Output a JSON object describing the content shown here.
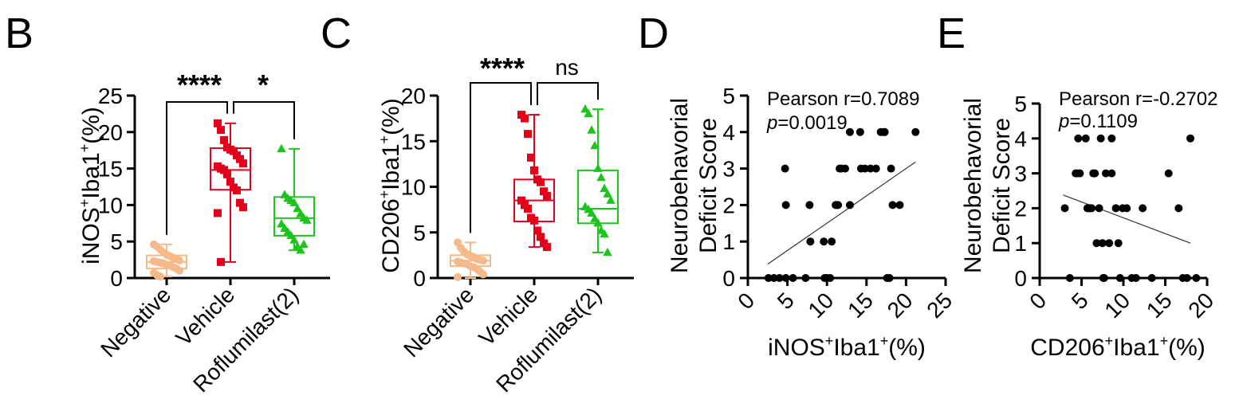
{
  "chart_data": [
    {
      "type": "box",
      "panel_label": "B",
      "ylabel_main": "iNOS",
      "ylabel_sup1": "+",
      "ylabel_mid": "Iba1",
      "ylabel_sup2": "+",
      "ylabel_tail": "(%)",
      "ylim": [
        0,
        25
      ],
      "yticks": [
        "0",
        "5",
        "10",
        "15",
        "20",
        "25"
      ],
      "categories": [
        "Negative",
        "Vehicle",
        "Roflumilast(2)"
      ],
      "colors": [
        "#f5b98a",
        "#e3001b",
        "#1ec41e"
      ],
      "markers": [
        "circle",
        "square",
        "triangle"
      ],
      "boxes": [
        {
          "min": 0.2,
          "q1": 1.3,
          "median": 2.2,
          "q3": 3.1,
          "max": 4.6
        },
        {
          "min": 2.2,
          "q1": 12.1,
          "median": 14.8,
          "q3": 17.8,
          "max": 21.2
        },
        {
          "min": 3.8,
          "q1": 5.8,
          "median": 8.2,
          "q3": 11.1,
          "max": 17.7
        }
      ],
      "points": [
        [
          4.6,
          4.3,
          3.9,
          3.5,
          3.2,
          3.0,
          2.8,
          2.6,
          2.4,
          2.3,
          2.2,
          2.1,
          2.0,
          1.8,
          1.7,
          1.5,
          1.3,
          1.0,
          0.7,
          0.4,
          0.2
        ],
        [
          21.2,
          20.3,
          18.9,
          17.9,
          17.6,
          17.4,
          16.8,
          16.3,
          15.7,
          15.3,
          15.0,
          14.8,
          14.2,
          13.2,
          12.4,
          12.0,
          10.3,
          9.7,
          8.9,
          2.2
        ],
        [
          17.7,
          11.4,
          10.9,
          10.6,
          10.3,
          9.5,
          8.8,
          8.2,
          7.9,
          7.4,
          6.8,
          6.3,
          5.8,
          5.2,
          4.3,
          3.8,
          4.6
        ]
      ],
      "significance": [
        {
          "from": 0,
          "to": 1,
          "label": "****"
        },
        {
          "from": 1,
          "to": 2,
          "label": "*"
        }
      ]
    },
    {
      "type": "box",
      "panel_label": "C",
      "ylabel_main": "CD206",
      "ylabel_sup1": "+",
      "ylabel_mid": "Iba1",
      "ylabel_sup2": "+",
      "ylabel_tail": "(%)",
      "ylim": [
        0,
        20
      ],
      "yticks": [
        "0",
        "5",
        "10",
        "15",
        "20"
      ],
      "categories": [
        "Negative",
        "Vehicle",
        "Roflumilast(2)"
      ],
      "colors": [
        "#f5b98a",
        "#e3001b",
        "#1ec41e"
      ],
      "markers": [
        "circle",
        "square",
        "triangle"
      ],
      "boxes": [
        {
          "min": 0.0,
          "q1": 1.3,
          "median": 1.9,
          "q3": 2.5,
          "max": 3.9
        },
        {
          "min": 3.4,
          "q1": 6.2,
          "median": 8.5,
          "q3": 10.8,
          "max": 17.9
        },
        {
          "min": 2.8,
          "q1": 6.0,
          "median": 7.6,
          "q3": 11.8,
          "max": 18.5
        }
      ],
      "points": [
        [
          3.9,
          3.3,
          2.9,
          2.6,
          2.4,
          2.3,
          2.1,
          2.0,
          1.9,
          1.8,
          1.7,
          1.6,
          1.5,
          1.3,
          1.2,
          1.0,
          0.7,
          0.4,
          0.1
        ],
        [
          17.9,
          17.5,
          15.8,
          13.2,
          11.8,
          10.8,
          10.5,
          9.5,
          9.0,
          8.5,
          8.0,
          7.6,
          6.6,
          6.3,
          5.2,
          4.5,
          3.8,
          3.4
        ],
        [
          18.5,
          18.0,
          16.2,
          14.5,
          12.0,
          11.0,
          9.8,
          9.2,
          8.5,
          7.8,
          7.5,
          7.1,
          6.5,
          6.0,
          5.2,
          4.8,
          2.8
        ]
      ],
      "significance": [
        {
          "from": 0,
          "to": 1,
          "label": "****"
        },
        {
          "from": 1,
          "to": 2,
          "label": "ns"
        }
      ]
    },
    {
      "type": "scatter",
      "panel_label": "D",
      "ylabel_line1": "Neurobehavorial",
      "ylabel_line2": "Deficit Score",
      "xlabel_main": "iNOS",
      "xlabel_sup1": "+",
      "xlabel_mid": "Iba1",
      "xlabel_sup2": "+",
      "xlabel_tail": "(%)",
      "xlim": [
        0,
        25
      ],
      "ylim": [
        0,
        5
      ],
      "xticks": [
        "0",
        "5",
        "10",
        "15",
        "20",
        "25"
      ],
      "yticks": [
        "0",
        "1",
        "2",
        "3",
        "4",
        "5"
      ],
      "stat_r": "Pearson r=0.7089",
      "stat_p_label": "p",
      "stat_p_value": "=0.0019",
      "fit": {
        "x1": 2.5,
        "y1": 0.38,
        "x2": 21.2,
        "y2": 3.18
      },
      "x": [
        2.6,
        3.3,
        4.0,
        4.8,
        5.7,
        7.3,
        9.7,
        10.0,
        10.4,
        4.7,
        4.8,
        7.9,
        7.8,
        9.6,
        10.6,
        11.4,
        11.1,
        11.3,
        11.8,
        11.6,
        12.3,
        12.9,
        14.3,
        14.8,
        15.5,
        16.2,
        16.8,
        18.1,
        17.2,
        17.3,
        17.6,
        17.9,
        18.3,
        19.2,
        21.2,
        12.9,
        14.2
      ],
      "y": [
        0,
        0,
        0,
        0,
        0,
        0,
        0,
        0,
        0,
        3,
        2,
        1,
        2,
        1,
        1,
        2,
        2,
        2,
        3,
        3,
        3,
        4,
        3,
        3,
        3,
        3,
        4,
        3,
        4,
        4,
        0,
        0,
        2,
        2,
        4,
        2,
        4
      ]
    },
    {
      "type": "scatter",
      "panel_label": "E",
      "ylabel_line1": "Neurobehavorial",
      "ylabel_line2": "Deficit Score",
      "xlabel_main": "CD206",
      "xlabel_sup1": "+",
      "xlabel_mid": "Iba1",
      "xlabel_sup2": "+",
      "xlabel_tail": "(%)",
      "xlim": [
        0,
        20
      ],
      "ylim": [
        0,
        5
      ],
      "xticks": [
        "0",
        "5",
        "10",
        "15",
        "20"
      ],
      "yticks": [
        "0",
        "1",
        "2",
        "3",
        "4",
        "5"
      ],
      "stat_r": "Pearson r=-0.2702",
      "stat_p_label": "p",
      "stat_p_value": "=0.1109",
      "fit": {
        "x1": 2.8,
        "y1": 2.38,
        "x2": 18.0,
        "y2": 1.0
      },
      "x": [
        3.0,
        3.6,
        4.3,
        4.6,
        4.5,
        4.8,
        5.5,
        5.7,
        5.9,
        6.0,
        6.2,
        6.4,
        6.8,
        7.1,
        6.6,
        7.3,
        7.5,
        7.7,
        7.6,
        7.9,
        8.3,
        8.6,
        8.6,
        9.1,
        9.4,
        9.6,
        9.9,
        10.4,
        11.0,
        12.3,
        13.4,
        15.4,
        16.6,
        17.1,
        17.6,
        18.0,
        18.7,
        11.5
      ],
      "y": [
        2,
        0,
        3,
        4,
        3,
        3,
        4,
        2,
        2,
        2,
        2,
        3,
        1,
        2,
        3,
        4,
        1,
        0,
        0,
        3,
        1,
        3,
        4,
        2,
        1,
        0,
        2,
        2,
        0,
        2,
        0,
        3,
        2,
        0,
        0,
        4,
        0,
        0
      ]
    }
  ]
}
